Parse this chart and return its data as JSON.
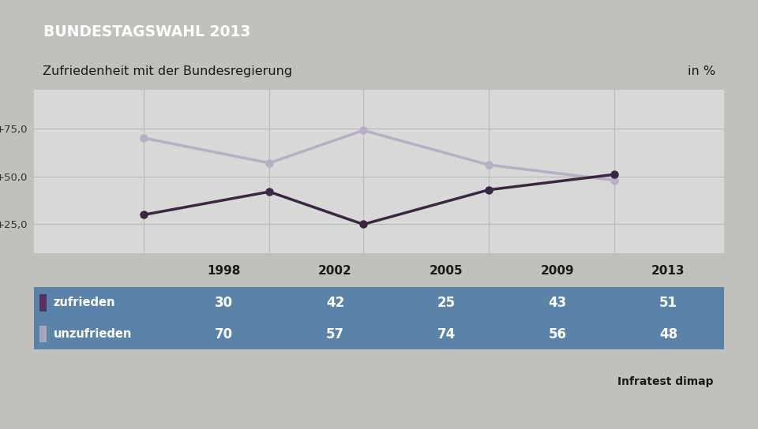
{
  "title_banner": "BUNDESTAGSWAHL 2013",
  "subtitle": "Zufriedenheit mit der Bundesregierung",
  "subtitle_right": "in %",
  "years": [
    1998,
    2002,
    2005,
    2009,
    2013
  ],
  "zufrieden": [
    30,
    42,
    25,
    43,
    51
  ],
  "unzufrieden": [
    70,
    57,
    74,
    56,
    48
  ],
  "zufrieden_label": "zufrieden",
  "unzufrieden_label": "unzufrieden",
  "source": "Infratest dimap",
  "yticks": [
    25,
    50,
    75
  ],
  "ytick_labels": [
    "+25,0",
    "+50,0",
    "+75,0"
  ],
  "ylim": [
    10,
    95
  ],
  "color_zufrieden": "#3d2645",
  "color_unzufrieden": "#b8aec8",
  "color_banner": "#1a3a6e",
  "color_table_bg": "#5b82a8",
  "color_chart_bg": "#d8d8d8",
  "color_outer_bg": "#c0c0bc",
  "color_zufrieden_swatch": "#5a3060",
  "color_unzufrieden_swatch": "#a8a4bc",
  "color_subtitle_bg": "#f0f0ee",
  "color_header_bg": "#e0dedd"
}
